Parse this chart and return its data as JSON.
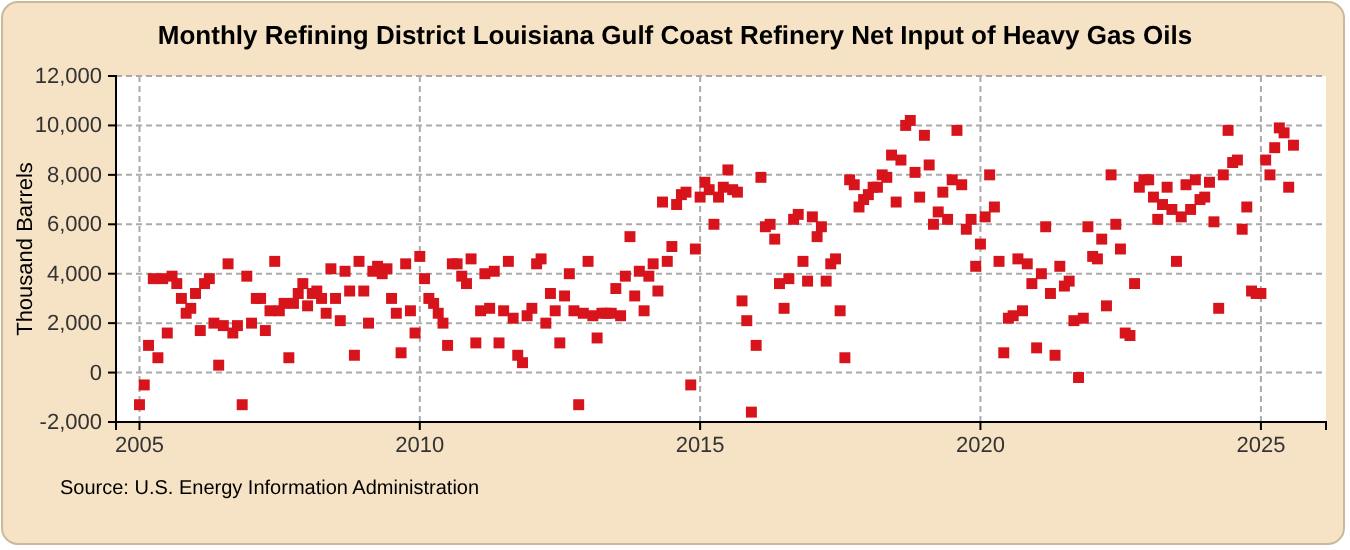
{
  "chart_data": {
    "type": "scatter",
    "title": "Monthly Refining District Louisiana Gulf Coast Refinery Net Input of Heavy Gas Oils",
    "ylabel": "Thousand Barrels",
    "annotations": [
      "Source: U.S. Energy Information Administration"
    ],
    "marker": "square",
    "grid": true,
    "xlim": [
      "2004-08",
      "2026-03"
    ],
    "xticks": [
      {
        "value": "2005",
        "label": "2005"
      },
      {
        "value": "2010",
        "label": "2010"
      },
      {
        "value": "2015",
        "label": "2015"
      },
      {
        "value": "2020",
        "label": "2020"
      },
      {
        "value": "2025",
        "label": "2025"
      }
    ],
    "ylim": [
      -2000,
      12000
    ],
    "yticks": [
      {
        "value": -2000,
        "label": "-2,000"
      },
      0,
      {
        "value": 2000,
        "label": "2,000"
      },
      {
        "value": 4000,
        "label": "4,000"
      },
      {
        "value": 6000,
        "label": "6,000"
      },
      {
        "value": 8000,
        "label": "8,000"
      },
      {
        "value": 10000,
        "label": "10,000"
      },
      {
        "value": 12000,
        "label": "12,000"
      }
    ],
    "series": [
      {
        "color": "#d7141b",
        "x": [
          "2005-01",
          "2005-02",
          "2005-03",
          "2005-04",
          "2005-05",
          "2005-06",
          "2005-07",
          "2005-08",
          "2005-09",
          "2005-10",
          "2005-11",
          "2005-12",
          "2006-01",
          "2006-02",
          "2006-03",
          "2006-04",
          "2006-05",
          "2006-06",
          "2006-07",
          "2006-08",
          "2006-09",
          "2006-10",
          "2006-11",
          "2006-12",
          "2007-01",
          "2007-02",
          "2007-03",
          "2007-04",
          "2007-05",
          "2007-06",
          "2007-07",
          "2007-08",
          "2007-09",
          "2007-10",
          "2007-11",
          "2007-12",
          "2008-01",
          "2008-02",
          "2008-03",
          "2008-04",
          "2008-05",
          "2008-06",
          "2008-07",
          "2008-08",
          "2008-09",
          "2008-10",
          "2008-11",
          "2008-12",
          "2009-01",
          "2009-02",
          "2009-03",
          "2009-04",
          "2009-05",
          "2009-06",
          "2009-07",
          "2009-08",
          "2009-09",
          "2009-10",
          "2009-11",
          "2009-12",
          "2010-01",
          "2010-02",
          "2010-03",
          "2010-04",
          "2010-05",
          "2010-06",
          "2010-07",
          "2010-08",
          "2010-09",
          "2010-10",
          "2010-11",
          "2010-12",
          "2011-01",
          "2011-02",
          "2011-03",
          "2011-04",
          "2011-05",
          "2011-06",
          "2011-07",
          "2011-08",
          "2011-09",
          "2011-10",
          "2011-11",
          "2011-12",
          "2012-01",
          "2012-02",
          "2012-03",
          "2012-04",
          "2012-05",
          "2012-06",
          "2012-07",
          "2012-08",
          "2012-09",
          "2012-10",
          "2012-11",
          "2012-12",
          "2013-01",
          "2013-02",
          "2013-03",
          "2013-04",
          "2013-05",
          "2013-06",
          "2013-07",
          "2013-08",
          "2013-09",
          "2013-10",
          "2013-11",
          "2013-12",
          "2014-01",
          "2014-02",
          "2014-03",
          "2014-04",
          "2014-05",
          "2014-06",
          "2014-07",
          "2014-08",
          "2014-09",
          "2014-10",
          "2014-11",
          "2014-12",
          "2015-01",
          "2015-02",
          "2015-03",
          "2015-04",
          "2015-05",
          "2015-06",
          "2015-07",
          "2015-08",
          "2015-09",
          "2015-10",
          "2015-11",
          "2015-12",
          "2016-01",
          "2016-02",
          "2016-03",
          "2016-04",
          "2016-05",
          "2016-06",
          "2016-07",
          "2016-08",
          "2016-09",
          "2016-10",
          "2016-11",
          "2016-12",
          "2017-01",
          "2017-02",
          "2017-03",
          "2017-04",
          "2017-05",
          "2017-06",
          "2017-07",
          "2017-08",
          "2017-09",
          "2017-10",
          "2017-11",
          "2017-12",
          "2018-01",
          "2018-02",
          "2018-03",
          "2018-04",
          "2018-05",
          "2018-06",
          "2018-07",
          "2018-08",
          "2018-09",
          "2018-10",
          "2018-11",
          "2018-12",
          "2019-01",
          "2019-02",
          "2019-03",
          "2019-04",
          "2019-05",
          "2019-06",
          "2019-07",
          "2019-08",
          "2019-09",
          "2019-10",
          "2019-11",
          "2019-12",
          "2020-01",
          "2020-02",
          "2020-03",
          "2020-04",
          "2020-05",
          "2020-06",
          "2020-07",
          "2020-08",
          "2020-09",
          "2020-10",
          "2020-11",
          "2020-12",
          "2021-01",
          "2021-02",
          "2021-03",
          "2021-04",
          "2021-05",
          "2021-06",
          "2021-07",
          "2021-08",
          "2021-09",
          "2021-10",
          "2021-11",
          "2021-12",
          "2022-01",
          "2022-02",
          "2022-03",
          "2022-04",
          "2022-05",
          "2022-06",
          "2022-07",
          "2022-08",
          "2022-09",
          "2022-10",
          "2022-11",
          "2022-12",
          "2023-01",
          "2023-02",
          "2023-03",
          "2023-04",
          "2023-05",
          "2023-06",
          "2023-07",
          "2023-08",
          "2023-09",
          "2023-10",
          "2023-11",
          "2023-12",
          "2024-01",
          "2024-02",
          "2024-03",
          "2024-04",
          "2024-05",
          "2024-06",
          "2024-07",
          "2024-08",
          "2024-09",
          "2024-10",
          "2024-11",
          "2024-12",
          "2025-01",
          "2025-02",
          "2025-03",
          "2025-04",
          "2025-05",
          "2025-06",
          "2025-07",
          "2025-08"
        ],
        "values": [
          -1300,
          -500,
          1100,
          3800,
          600,
          3800,
          1600,
          3900,
          3600,
          3000,
          2400,
          2600,
          3200,
          1700,
          3600,
          3800,
          2000,
          300,
          1900,
          4400,
          1600,
          1900,
          -1300,
          3900,
          2000,
          3000,
          3000,
          1700,
          2500,
          4500,
          2500,
          2800,
          600,
          2800,
          3200,
          3600,
          2700,
          3200,
          3300,
          3000,
          2400,
          4200,
          3000,
          2100,
          4100,
          3300,
          700,
          4500,
          3300,
          2000,
          4100,
          4300,
          4000,
          4200,
          3000,
          2400,
          800,
          4400,
          2500,
          1600,
          4700,
          3800,
          3000,
          2800,
          2400,
          2000,
          1100,
          4400,
          4400,
          3900,
          3600,
          4600,
          1200,
          2500,
          4000,
          2600,
          4100,
          1200,
          2500,
          4500,
          2200,
          700,
          400,
          2300,
          2600,
          4400,
          4600,
          2000,
          3200,
          2500,
          1200,
          3100,
          4000,
          2500,
          -1300,
          2400,
          4500,
          2300,
          1400,
          2400,
          2400,
          2400,
          3400,
          2300,
          3900,
          5500,
          3100,
          4100,
          2500,
          3900,
          4400,
          3300,
          6900,
          4500,
          5100,
          6800,
          7200,
          7300,
          -500,
          5000,
          7100,
          7700,
          7400,
          6000,
          7100,
          7500,
          8200,
          7400,
          7300,
          2900,
          2100,
          -1600,
          1100,
          7900,
          5900,
          6000,
          5400,
          3600,
          2600,
          3800,
          6200,
          6400,
          4500,
          3700,
          6300,
          5500,
          5900,
          3700,
          4400,
          4600,
          2500,
          600,
          7800,
          7600,
          6700,
          7000,
          7200,
          7500,
          7500,
          8000,
          7900,
          8800,
          6900,
          8600,
          10000,
          10200,
          8100,
          7100,
          9600,
          8400,
          6000,
          6500,
          7300,
          6200,
          7800,
          9800,
          7600,
          5800,
          6200,
          4300,
          5200,
          6300,
          8000,
          6700,
          4500,
          800,
          2200,
          2300,
          4600,
          2500,
          4400,
          3600,
          1000,
          4000,
          5900,
          3200,
          700,
          4300,
          3500,
          3700,
          2100,
          -200,
          2200,
          5900,
          4700,
          4600,
          5400,
          2700,
          8000,
          6000,
          5000,
          1600,
          1500,
          3600,
          7500,
          7800,
          7800,
          7100,
          6200,
          6800,
          7500,
          6600,
          4500,
          6300,
          7600,
          6600,
          7800,
          7000,
          7100,
          7700,
          6100,
          2600,
          8000,
          9800,
          8500,
          8600,
          5800,
          6700,
          3300,
          3200,
          3200,
          8600,
          8000,
          9100,
          9900,
          9700,
          7500,
          9200
        ]
      }
    ]
  }
}
